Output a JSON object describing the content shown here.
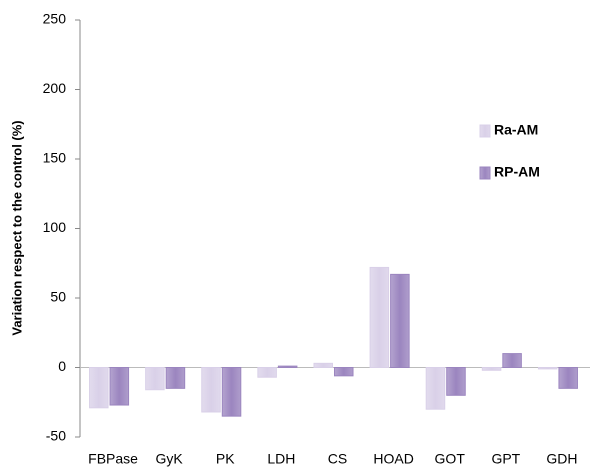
{
  "chart_data": {
    "type": "bar",
    "y_label": "Variation respect to the control (%)",
    "categories": [
      "FBPase",
      "GyK",
      "PK",
      "LDH",
      "CS",
      "HOAD",
      "GOT",
      "GPT",
      "GDH"
    ],
    "series": [
      {
        "name": "Ra-AM",
        "color": "#d9d0e8",
        "values": [
          -29,
          -16,
          -32,
          -7,
          3,
          72,
          -30,
          -2,
          -1
        ]
      },
      {
        "name": "RP-AM",
        "color": "#9b85bf",
        "values": [
          -27,
          -15,
          -35,
          1,
          -6,
          67,
          -20,
          10,
          -15
        ]
      }
    ],
    "ylim": [
      -50,
      250
    ],
    "yticks": [
      -50,
      0,
      50,
      100,
      150,
      200,
      250
    ],
    "grid": false
  }
}
